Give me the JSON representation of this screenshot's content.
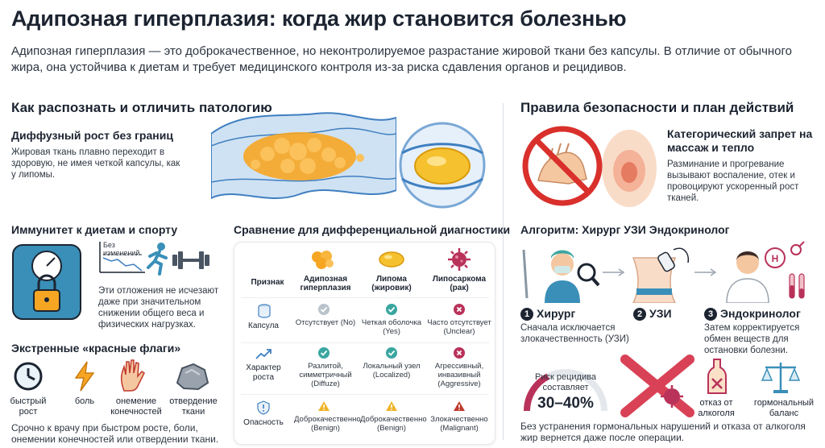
{
  "title": "Адипозная гиперплазия: когда жир становится болезнью",
  "intro": "Адипозная гиперплазия — это доброкачественное, но неконтролируемое разрастание жировой ткани без капсулы. В отличие от обычного жира, она устойчива к диетам и требует медицинского контроля из-за риска сдавления органов и рецидивов.",
  "left": {
    "heading": "Как распознать и отличить патологию",
    "diffuse": {
      "title": "Диффузный рост без границ",
      "text": "Жировая ткань плавно переходит в здоровую, не имея четкой капсулы, как у липомы."
    },
    "immunity": {
      "title": "Иммунитет к диетам и спорту",
      "graph_label": "Без изменений",
      "text": "Эти отложения не исчезают даже при значительном снижении общего веса и физических нагрузках."
    },
    "flags": {
      "title": "Экстренные «красные флаги»",
      "items": [
        {
          "label": "быстрый рост",
          "icon": "clock-icon"
        },
        {
          "label": "боль",
          "icon": "lightning-icon"
        },
        {
          "label": "онемение конечностей",
          "icon": "hand-icon"
        },
        {
          "label": "отвердение ткани",
          "icon": "stone-icon"
        }
      ],
      "note": "Срочно к врачу при быстром росте, боли, онемении конечностей или отвердении ткани."
    }
  },
  "comparison": {
    "title": "Сравнение для дифференциальной диагностики",
    "col_feature": "Признак",
    "columns": [
      {
        "name": "Адипозная гиперплазия"
      },
      {
        "name": "Липома (жировик)"
      },
      {
        "name": "Липосаркома (рак)"
      }
    ],
    "rows": [
      {
        "label": "Капсула",
        "cells": [
          {
            "text": "Отсутствует (No)",
            "status": "neutral"
          },
          {
            "text": "Четкая оболочка (Yes)",
            "status": "ok"
          },
          {
            "text": "Часто отсутствует (Unclear)",
            "status": "bad"
          }
        ]
      },
      {
        "label": "Характер роста",
        "cells": [
          {
            "text": "Разлитой, симметричный (Diffuze)",
            "status": "ok"
          },
          {
            "text": "Локальный узел (Localized)",
            "status": "ok"
          },
          {
            "text": "Агрессивный, инвазивный (Aggressive)",
            "status": "bad"
          }
        ]
      },
      {
        "label": "Опасность",
        "cells": [
          {
            "text": "Доброкачественно (Benign)",
            "status": "warn"
          },
          {
            "text": "Доброкачественно (Benign)",
            "status": "warn"
          },
          {
            "text": "Злокачественно (Malignant)",
            "status": "danger"
          }
        ]
      }
    ]
  },
  "right": {
    "heading": "Правила безопасности и план действий",
    "ban": {
      "title": "Категорический запрет на массаж и тепло",
      "text": "Разминание и прогревание вызывают воспаление, отек и провоцируют ускоренный рост тканей."
    },
    "algorithm": {
      "title": "Алгоритм: Хирург  УЗИ  Эндокринолог",
      "steps": [
        {
          "num": "1",
          "name": "Хирург",
          "text": "Сначала исключается злокачественность (УЗИ)"
        },
        {
          "num": "2",
          "name": "УЗИ",
          "text": ""
        },
        {
          "num": "3",
          "name": "Эндокринолог",
          "text": "Затем корректируется обмен веществ для остановки болезни."
        }
      ]
    },
    "recurrence": {
      "label": "Риск рецидива составляет",
      "value": "30–40%",
      "fraction": 0.35
    },
    "factors": [
      {
        "label": "отказ от алкоголя"
      },
      {
        "label": "гормональный баланс"
      }
    ],
    "note": "Без устранения гормональных нарушений и отказа от алкоголя жир вернется даже после операции."
  },
  "colors": {
    "fat": "#f6a623",
    "tissue": "#3f7fc1",
    "ok": "#3aa6a0",
    "bad": "#b8325a",
    "warn": "#f0b429",
    "danger": "#c0392b",
    "ban_red": "#d9302c"
  }
}
